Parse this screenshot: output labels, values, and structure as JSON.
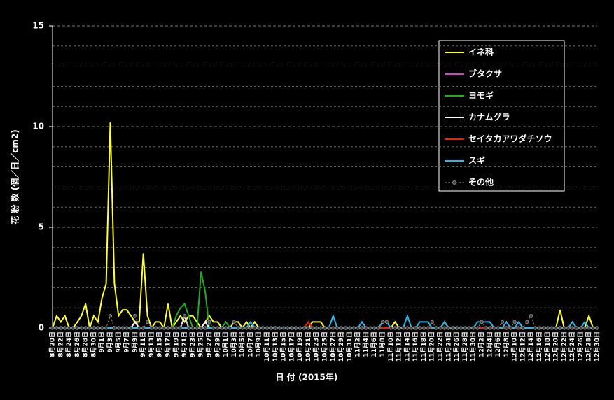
{
  "chart_data": {
    "type": "line",
    "ylabel": "花 粉 数 (個／日／cm2)",
    "xlabel": "日 付 (2015年)",
    "ylim": [
      0,
      15
    ],
    "yticks": [
      0,
      5,
      10,
      15
    ],
    "minor_yticks": [
      1,
      2,
      3,
      4,
      6,
      7,
      8,
      9,
      11,
      12,
      13,
      14
    ],
    "grid": true,
    "legend": "upper right",
    "categories": [
      "8月20日",
      null,
      "8月22日",
      null,
      "8月24日",
      null,
      "8月26日",
      null,
      "8月28日",
      null,
      "8月30日",
      null,
      "9月1日",
      null,
      "9月3日",
      null,
      "9月5日",
      null,
      "9月7日",
      null,
      "9月9日",
      null,
      "9月11日",
      null,
      "9月13日",
      null,
      "9月15日",
      null,
      "9月17日",
      null,
      "9月19日",
      null,
      "9月21日",
      null,
      "9月23日",
      null,
      "9月25日",
      null,
      "9月27日",
      null,
      "9月29日",
      null,
      "10月1日",
      null,
      "10月3日",
      null,
      "10月5日",
      null,
      "10月7日",
      null,
      "10月9日",
      null,
      "10月11日",
      null,
      "10月13日",
      null,
      "10月15日",
      null,
      "10月17日",
      null,
      "10月19日",
      null,
      "10月21日",
      null,
      "10月23日",
      null,
      "10月25日",
      null,
      "10月27日",
      null,
      "10月29日",
      null,
      "10月31日",
      null,
      "11月2日",
      null,
      "11月4日",
      null,
      "11月6日",
      null,
      "11月8日",
      null,
      "11月10日",
      null,
      "11月12日",
      null,
      "11月14日",
      null,
      "11月16日",
      null,
      "11月18日",
      null,
      "11月20日",
      null,
      "11月22日",
      null,
      "11月24日",
      null,
      "11月26日",
      null,
      "11月28日",
      null,
      "11月30日",
      null,
      "12月2日",
      null,
      "12月4日",
      null,
      "12月6日",
      null,
      "12月8日",
      null,
      "12月10日",
      null,
      "12月12日",
      null,
      "12月14日",
      null,
      "12月16日",
      null,
      "12月18日",
      null,
      "12月20日",
      null,
      "12月22日",
      null,
      "12月24日",
      null,
      "12月26日",
      null,
      "12月28日",
      null,
      "12月30日"
    ],
    "series": [
      {
        "name": "イネ科",
        "color": "#ffff33",
        "values": [
          0,
          0.6,
          0.3,
          0.6,
          0,
          0,
          0.3,
          0.6,
          1.2,
          0,
          0.6,
          0.3,
          1.5,
          2.2,
          10.2,
          2.2,
          0.6,
          0.9,
          0.9,
          0.6,
          0.3,
          0.3,
          3.7,
          0.6,
          0,
          0.3,
          0.3,
          0,
          1.2,
          0,
          0.3,
          0.6,
          0.3,
          0.6,
          0.6,
          0.3,
          0,
          0.3,
          0.6,
          0.3,
          0.3,
          0,
          0,
          0,
          0.3,
          0.3,
          0,
          0.3,
          0,
          0.3,
          0,
          0,
          0,
          0,
          0,
          0,
          0,
          0,
          0,
          0,
          0,
          0,
          0,
          0.3,
          0.3,
          0.3,
          0,
          0,
          0,
          0,
          0,
          0,
          0,
          0,
          0,
          0,
          0,
          0,
          0,
          0,
          0,
          0,
          0,
          0.3,
          0,
          0,
          0,
          0,
          0,
          0,
          0,
          0,
          0,
          0,
          0,
          0.3,
          0,
          0,
          0,
          0,
          0,
          0,
          0,
          0,
          0,
          0,
          0,
          0,
          0,
          0,
          0,
          0,
          0,
          0,
          0,
          0,
          0,
          0,
          0,
          0,
          0,
          0,
          0,
          0.9,
          0,
          0,
          0,
          0,
          0,
          0,
          0.6,
          0,
          0
        ]
      },
      {
        "name": "ブタクサ",
        "color": "#cc44cc",
        "values": [
          0,
          0,
          0,
          0,
          0,
          0,
          0,
          0,
          0,
          0,
          0,
          0,
          0,
          0,
          0,
          0,
          0,
          0,
          0,
          0,
          0,
          0,
          0,
          0,
          0,
          0,
          0,
          0,
          0,
          0,
          0,
          0,
          0,
          0,
          0,
          0,
          0,
          0,
          0,
          0,
          0,
          0,
          0,
          0,
          0,
          0,
          0,
          0,
          0,
          0,
          0,
          0,
          0,
          0,
          0,
          0,
          0,
          0,
          0,
          0,
          0,
          0,
          0,
          0,
          0,
          0,
          0,
          0,
          0,
          0,
          0,
          0,
          0,
          0,
          0,
          0,
          0,
          0,
          0,
          0,
          0,
          0,
          0,
          0,
          0,
          0,
          0,
          0,
          0,
          0,
          0,
          0,
          0,
          0,
          0,
          0,
          0,
          0,
          0,
          0,
          0,
          0,
          0,
          0,
          0,
          0,
          0,
          0,
          0,
          0,
          0,
          0,
          0,
          0,
          0,
          0,
          0,
          0,
          0,
          0,
          0,
          0,
          0,
          0,
          0,
          0,
          0,
          0,
          0,
          0,
          0,
          0,
          0
        ]
      },
      {
        "name": "ヨモギ",
        "color": "#22aa22",
        "values": [
          0,
          0,
          0,
          0,
          0,
          0,
          0,
          0,
          0,
          0,
          0,
          0,
          0,
          0,
          0,
          0,
          0,
          0,
          0,
          0,
          0,
          0,
          0,
          0,
          0,
          0,
          0,
          0,
          0,
          0,
          0.6,
          1,
          1.2,
          0.6,
          0,
          0,
          2.8,
          1.8,
          0,
          0,
          0,
          0,
          0.3,
          0,
          0,
          0,
          0,
          0,
          0,
          0,
          0,
          0,
          0,
          0,
          0,
          0,
          0,
          0,
          0,
          0,
          0,
          0,
          0,
          0,
          0,
          0,
          0,
          0,
          0,
          0,
          0,
          0,
          0,
          0,
          0,
          0,
          0,
          0,
          0,
          0,
          0,
          0,
          0,
          0,
          0,
          0,
          0,
          0,
          0,
          0,
          0,
          0,
          0,
          0,
          0,
          0,
          0,
          0,
          0,
          0,
          0,
          0,
          0,
          0,
          0,
          0,
          0,
          0,
          0,
          0,
          0,
          0,
          0,
          0,
          0,
          0,
          0,
          0,
          0,
          0,
          0,
          0,
          0,
          0,
          0,
          0,
          0,
          0,
          0,
          0,
          0,
          0,
          0
        ]
      },
      {
        "name": "カナムグラ",
        "color": "#ffffff",
        "values": [
          0,
          0,
          0,
          0,
          0,
          0,
          0,
          0,
          0,
          0,
          0,
          0,
          0,
          0,
          0,
          0,
          0,
          0,
          0,
          0,
          0.3,
          0,
          0,
          0,
          0,
          0,
          0,
          0,
          0,
          0,
          0,
          0,
          0.6,
          0,
          0,
          0,
          0,
          0.3,
          0,
          0,
          0,
          0,
          0,
          0,
          0,
          0,
          0,
          0,
          0,
          0,
          0,
          0,
          0,
          0,
          0,
          0,
          0,
          0,
          0,
          0,
          0,
          0,
          0,
          0,
          0,
          0,
          0,
          0,
          0,
          0,
          0,
          0,
          0,
          0,
          0,
          0,
          0,
          0,
          0,
          0,
          0,
          0,
          0,
          0,
          0,
          0,
          0,
          0,
          0,
          0,
          0,
          0,
          0,
          0,
          0,
          0,
          0,
          0,
          0,
          0,
          0,
          0,
          0,
          0,
          0,
          0,
          0,
          0,
          0,
          0,
          0,
          0,
          0,
          0,
          0,
          0,
          0,
          0,
          0,
          0,
          0,
          0,
          0,
          0,
          0,
          0,
          0,
          0,
          0,
          0,
          0,
          0,
          0
        ]
      },
      {
        "name": "セイタカアワダチソウ",
        "color": "#ee2200",
        "values": [
          0,
          0,
          0,
          0,
          0,
          0,
          0,
          0,
          0,
          0,
          0,
          0,
          0,
          0,
          0,
          0,
          0,
          0,
          0,
          0,
          0,
          0,
          0,
          0,
          0,
          0,
          0,
          0,
          0,
          0,
          0,
          0,
          0,
          0,
          0,
          0,
          0,
          0,
          0,
          0,
          0,
          0,
          0,
          0,
          0,
          0,
          0,
          0,
          0,
          0,
          0,
          0,
          0,
          0,
          0,
          0,
          0,
          0,
          0,
          0,
          0,
          0,
          0.3,
          0,
          0,
          0,
          0,
          0,
          0,
          0,
          0,
          0,
          0,
          0,
          0,
          0,
          0,
          0,
          0,
          0,
          0,
          0,
          0,
          0,
          0,
          0,
          0,
          0,
          0,
          0,
          0,
          0,
          0,
          0,
          0,
          0,
          0,
          0,
          0,
          0,
          0,
          0,
          0,
          0,
          0,
          0,
          0,
          0,
          0,
          0,
          0,
          0,
          0,
          0,
          0,
          0,
          0,
          0,
          0,
          0,
          0,
          0,
          0,
          0,
          0,
          0,
          0,
          0,
          0,
          0,
          0,
          0,
          0
        ]
      },
      {
        "name": "スギ",
        "color": "#22bbee",
        "values": [
          0,
          0,
          0,
          0,
          0,
          0,
          0,
          0,
          0,
          0,
          0,
          0,
          0,
          0,
          0,
          0,
          0,
          0,
          0,
          0,
          0,
          0,
          0,
          0,
          0,
          0,
          0,
          0,
          0,
          0,
          0,
          0,
          0,
          0,
          0,
          0,
          0,
          0,
          0,
          0,
          0,
          0,
          0,
          0,
          0,
          0,
          0,
          0,
          0.3,
          0,
          0,
          0,
          0,
          0,
          0,
          0,
          0,
          0,
          0,
          0,
          0,
          0,
          0,
          0,
          0,
          0,
          0,
          0,
          0.6,
          0,
          0,
          0,
          0,
          0,
          0,
          0.3,
          0,
          0,
          0,
          0,
          0.3,
          0.3,
          0,
          0,
          0,
          0,
          0.6,
          0,
          0,
          0.3,
          0.3,
          0.3,
          0,
          0,
          0,
          0.3,
          0,
          0,
          0,
          0,
          0,
          0,
          0,
          0.3,
          0.3,
          0.3,
          0.3,
          0,
          0,
          0,
          0.3,
          0,
          0,
          0.3,
          0,
          0,
          0,
          0,
          0,
          0,
          0,
          0,
          0,
          0,
          0,
          0,
          0.3,
          0,
          0,
          0.3,
          0,
          0,
          0
        ]
      },
      {
        "name": "その他",
        "color": "#888888",
        "values": [
          0,
          0,
          0,
          0,
          0,
          0,
          0,
          0,
          0,
          0,
          0,
          0,
          0,
          0,
          0.6,
          0,
          0,
          0,
          0,
          0,
          0.6,
          0,
          0,
          0.3,
          0,
          0,
          0,
          0,
          0,
          0,
          0,
          0,
          0.6,
          0,
          0,
          0,
          0,
          0,
          0.3,
          0,
          0,
          0,
          0,
          0,
          0.3,
          0,
          0,
          0,
          0,
          0,
          0,
          0,
          0,
          0,
          0,
          0,
          0,
          0,
          0,
          0,
          0,
          0,
          0,
          0,
          0,
          0,
          0,
          0,
          0,
          0,
          0,
          0,
          0,
          0,
          0,
          0,
          0,
          0,
          0,
          0,
          0.3,
          0.3,
          0,
          0,
          0,
          0,
          0,
          0,
          0,
          0,
          0,
          0,
          0.3,
          0,
          0,
          0,
          0,
          0,
          0,
          0,
          0,
          0,
          0,
          0,
          0.3,
          0,
          0,
          0,
          0,
          0.3,
          0,
          0,
          0.3,
          0,
          0,
          0.3,
          0.6,
          0,
          0,
          0,
          0,
          0,
          0,
          0,
          0,
          0,
          0,
          0,
          0,
          0,
          0,
          0,
          0
        ]
      }
    ]
  }
}
